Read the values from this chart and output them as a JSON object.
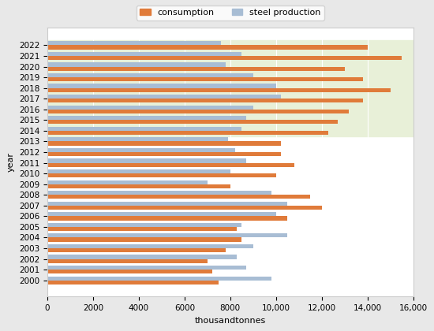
{
  "years": [
    2022,
    2021,
    2020,
    2019,
    2018,
    2017,
    2016,
    2015,
    2014,
    2013,
    2012,
    2011,
    2010,
    2009,
    2008,
    2007,
    2006,
    2005,
    2004,
    2003,
    2002,
    2001,
    2000
  ],
  "consumption": [
    14000,
    15500,
    13000,
    13800,
    15000,
    13800,
    13200,
    12700,
    12300,
    10200,
    10200,
    10800,
    10000,
    8000,
    11500,
    12000,
    10500,
    8300,
    8500,
    7800,
    7000,
    7200,
    7500
  ],
  "steel_production": [
    7600,
    8500,
    7800,
    9000,
    10000,
    10200,
    9000,
    8700,
    8500,
    7900,
    8200,
    8700,
    8000,
    7000,
    9800,
    10500,
    10000,
    8500,
    10500,
    9000,
    8300,
    8700,
    9800
  ],
  "consumption_color": "#E07B3A",
  "steel_production_color": "#A8BDD4",
  "background_color": "#FFFFFF",
  "figure_bg": "#E8E8E8",
  "highlight_color": "#E8F0D8",
  "highlight_years": [
    "2022",
    "2021",
    "2020",
    "2019",
    "2018",
    "2017",
    "2016",
    "2015",
    "2014"
  ],
  "xlabel": "thousandtonnes",
  "ylabel": "year",
  "xlim": [
    0,
    16000
  ],
  "xticks": [
    0,
    2000,
    4000,
    6000,
    8000,
    10000,
    12000,
    14000,
    16000
  ],
  "xtick_labels": [
    "0",
    "2000",
    "4000",
    "6000",
    "8000",
    "10,000",
    "12,000",
    "14,000",
    "16,000"
  ],
  "legend_labels": [
    "consumption",
    "steel production"
  ],
  "bar_height": 0.38,
  "figsize": [
    5.5,
    4.2
  ],
  "dpi": 100
}
